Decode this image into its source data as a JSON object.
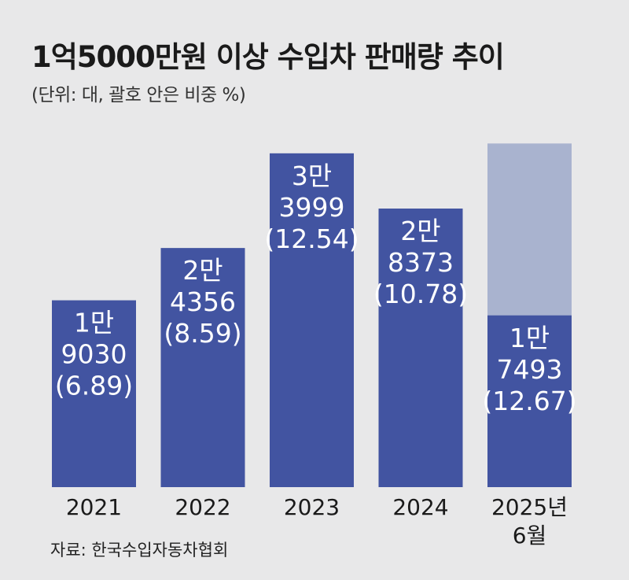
{
  "title": "1억5000만원 이상 수입차 판매량 추이",
  "subtitle": "(단위: 대, 괄호 안은 비중 %)",
  "source": "자료: 한국수입자동차협회",
  "colors": {
    "bar": "#4254a1",
    "bar_ghost": "#a9b3cf",
    "background": "#e8e8e9",
    "label": "#ffffff"
  },
  "chart_data": {
    "type": "bar",
    "categories": [
      "2021",
      "2022",
      "2023",
      "2024",
      "2025년 6월"
    ],
    "category_lines": [
      [
        "2021"
      ],
      [
        "2022"
      ],
      [
        "2023"
      ],
      [
        "2024"
      ],
      [
        "2025년",
        "6월"
      ]
    ],
    "values": [
      19030,
      24356,
      33999,
      28373,
      17493
    ],
    "shares": [
      6.89,
      8.59,
      12.54,
      10.78,
      12.67
    ],
    "bar_labels": [
      [
        "1만",
        "9030",
        "(6.89)"
      ],
      [
        "2만",
        "4356",
        "(8.59)"
      ],
      [
        "3만",
        "3999",
        "(12.54)"
      ],
      [
        "2만",
        "8373",
        "(10.78)"
      ],
      [
        "1만",
        "7493",
        "(12.67)"
      ]
    ],
    "ghost_bar": {
      "index": 4,
      "value": 35000
    },
    "ylim": [
      0,
      42000
    ],
    "xlabel": "",
    "ylabel": "",
    "grid": false,
    "legend": "none"
  }
}
